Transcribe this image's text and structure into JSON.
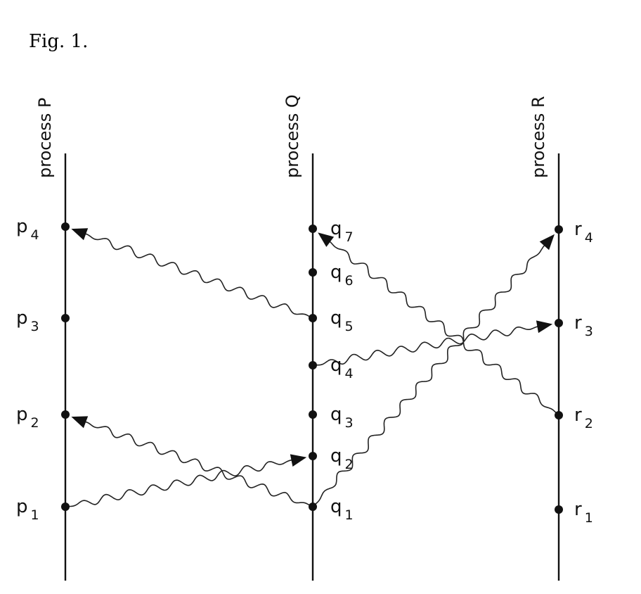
{
  "caption": "Fig. 1.",
  "processes": [
    {
      "id": "P",
      "label": "process P"
    },
    {
      "id": "Q",
      "label": "process Q"
    },
    {
      "id": "R",
      "label": "process R"
    }
  ],
  "events": {
    "P": [
      {
        "name": "p",
        "index": "1"
      },
      {
        "name": "p",
        "index": "2"
      },
      {
        "name": "p",
        "index": "3"
      },
      {
        "name": "p",
        "index": "4"
      }
    ],
    "Q": [
      {
        "name": "q",
        "index": "1"
      },
      {
        "name": "q",
        "index": "2"
      },
      {
        "name": "q",
        "index": "3"
      },
      {
        "name": "q",
        "index": "4"
      },
      {
        "name": "q",
        "index": "5"
      },
      {
        "name": "q",
        "index": "6"
      },
      {
        "name": "q",
        "index": "7"
      }
    ],
    "R": [
      {
        "name": "r",
        "index": "1"
      },
      {
        "name": "r",
        "index": "2"
      },
      {
        "name": "r",
        "index": "3"
      },
      {
        "name": "r",
        "index": "4"
      }
    ]
  },
  "messages": [
    {
      "from": "p1",
      "to": "q2"
    },
    {
      "from": "q1",
      "to": "p2"
    },
    {
      "from": "q1",
      "to": "r4"
    },
    {
      "from": "q4",
      "to": "r3"
    },
    {
      "from": "r2",
      "to": "q7"
    },
    {
      "from": "q5",
      "to": "p4"
    }
  ]
}
